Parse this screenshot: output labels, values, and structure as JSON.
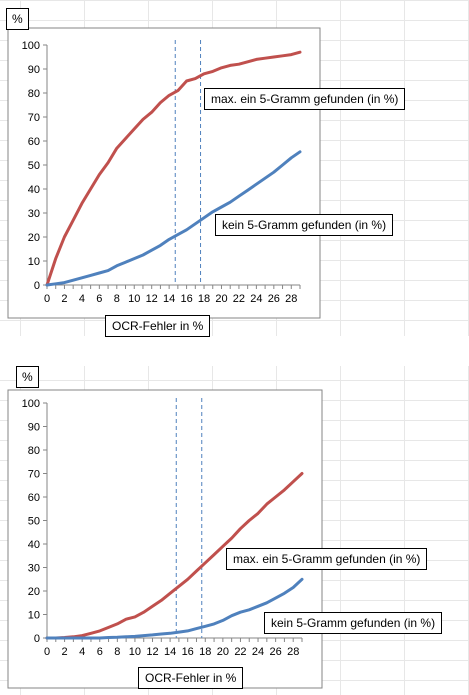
{
  "chart_data": [
    {
      "type": "line",
      "ylabel": "%",
      "xlabel": "OCR-Fehler in %",
      "xlim": [
        0,
        29
      ],
      "ylim": [
        0,
        100
      ],
      "xticks": [
        0,
        2,
        4,
        6,
        8,
        10,
        12,
        14,
        16,
        18,
        20,
        22,
        24,
        26,
        28
      ],
      "yticks": [
        0,
        10,
        20,
        30,
        40,
        50,
        60,
        70,
        80,
        90,
        100
      ],
      "vlines": [
        14.7,
        17.6
      ],
      "series": [
        {
          "name": "max. ein 5-Gramm gefunden (in %)",
          "color": "#c0504d",
          "x": [
            0,
            1,
            2,
            3,
            4,
            5,
            6,
            7,
            8,
            9,
            10,
            11,
            12,
            13,
            14,
            15,
            16,
            17,
            18,
            19,
            20,
            21,
            22,
            23,
            24,
            25,
            26,
            27,
            28,
            29
          ],
          "y": [
            0,
            11,
            20,
            27,
            34,
            40,
            46,
            51,
            57,
            61,
            65,
            69,
            72,
            76,
            79,
            81,
            85,
            86,
            88,
            89,
            90.5,
            91.5,
            92,
            93,
            94,
            94.5,
            95,
            95.5,
            96,
            97
          ]
        },
        {
          "name": "kein 5-Gramm gefunden (in %)",
          "color": "#4f81bd",
          "x": [
            0,
            1,
            2,
            3,
            4,
            5,
            6,
            7,
            8,
            9,
            10,
            11,
            12,
            13,
            14,
            15,
            16,
            17,
            18,
            19,
            20,
            21,
            22,
            23,
            24,
            25,
            26,
            27,
            28,
            29
          ],
          "y": [
            0,
            0.5,
            1,
            2,
            3,
            4,
            5,
            6,
            8,
            9.5,
            11,
            12.5,
            14.5,
            16.5,
            19,
            21,
            23,
            25.5,
            28,
            30.5,
            32.5,
            34.5,
            37,
            39.5,
            42,
            44.5,
            47,
            50,
            53,
            55.5
          ]
        }
      ]
    },
    {
      "type": "line",
      "ylabel": "%",
      "xlabel": "OCR-Fehler in %",
      "xlim": [
        0,
        29
      ],
      "ylim": [
        0,
        100
      ],
      "xticks": [
        0,
        2,
        4,
        6,
        8,
        10,
        12,
        14,
        16,
        18,
        20,
        22,
        24,
        26,
        28
      ],
      "yticks": [
        0,
        10,
        20,
        30,
        40,
        50,
        60,
        70,
        80,
        90,
        100
      ],
      "vlines": [
        14.7,
        17.6
      ],
      "series": [
        {
          "name": "max. ein 5-Gramm gefunden (in %)",
          "color": "#c0504d",
          "x": [
            0,
            1,
            2,
            3,
            4,
            5,
            6,
            7,
            8,
            9,
            10,
            11,
            12,
            13,
            14,
            15,
            16,
            17,
            18,
            19,
            20,
            21,
            22,
            23,
            24,
            25,
            26,
            27,
            28,
            29
          ],
          "y": [
            0,
            0,
            0.2,
            0.5,
            1,
            2,
            3,
            4.5,
            6,
            8,
            9,
            11,
            13.5,
            16,
            19,
            22,
            25,
            28.5,
            32,
            35.5,
            39,
            42.5,
            46.5,
            50,
            53,
            57,
            60,
            63,
            66.5,
            70
          ]
        },
        {
          "name": "kein 5-Gramm gefunden (in %)",
          "color": "#4f81bd",
          "x": [
            0,
            1,
            2,
            3,
            4,
            5,
            6,
            7,
            8,
            9,
            10,
            11,
            12,
            13,
            14,
            15,
            16,
            17,
            18,
            19,
            20,
            21,
            22,
            23,
            24,
            25,
            26,
            27,
            28,
            29
          ],
          "y": [
            0,
            0,
            0,
            0,
            0,
            0,
            0,
            0.2,
            0.3,
            0.5,
            0.7,
            1,
            1.3,
            1.7,
            2,
            2.5,
            3,
            4,
            5,
            6,
            7.5,
            9.5,
            11,
            12,
            13.5,
            15,
            17,
            19,
            21.5,
            25
          ]
        }
      ]
    }
  ]
}
